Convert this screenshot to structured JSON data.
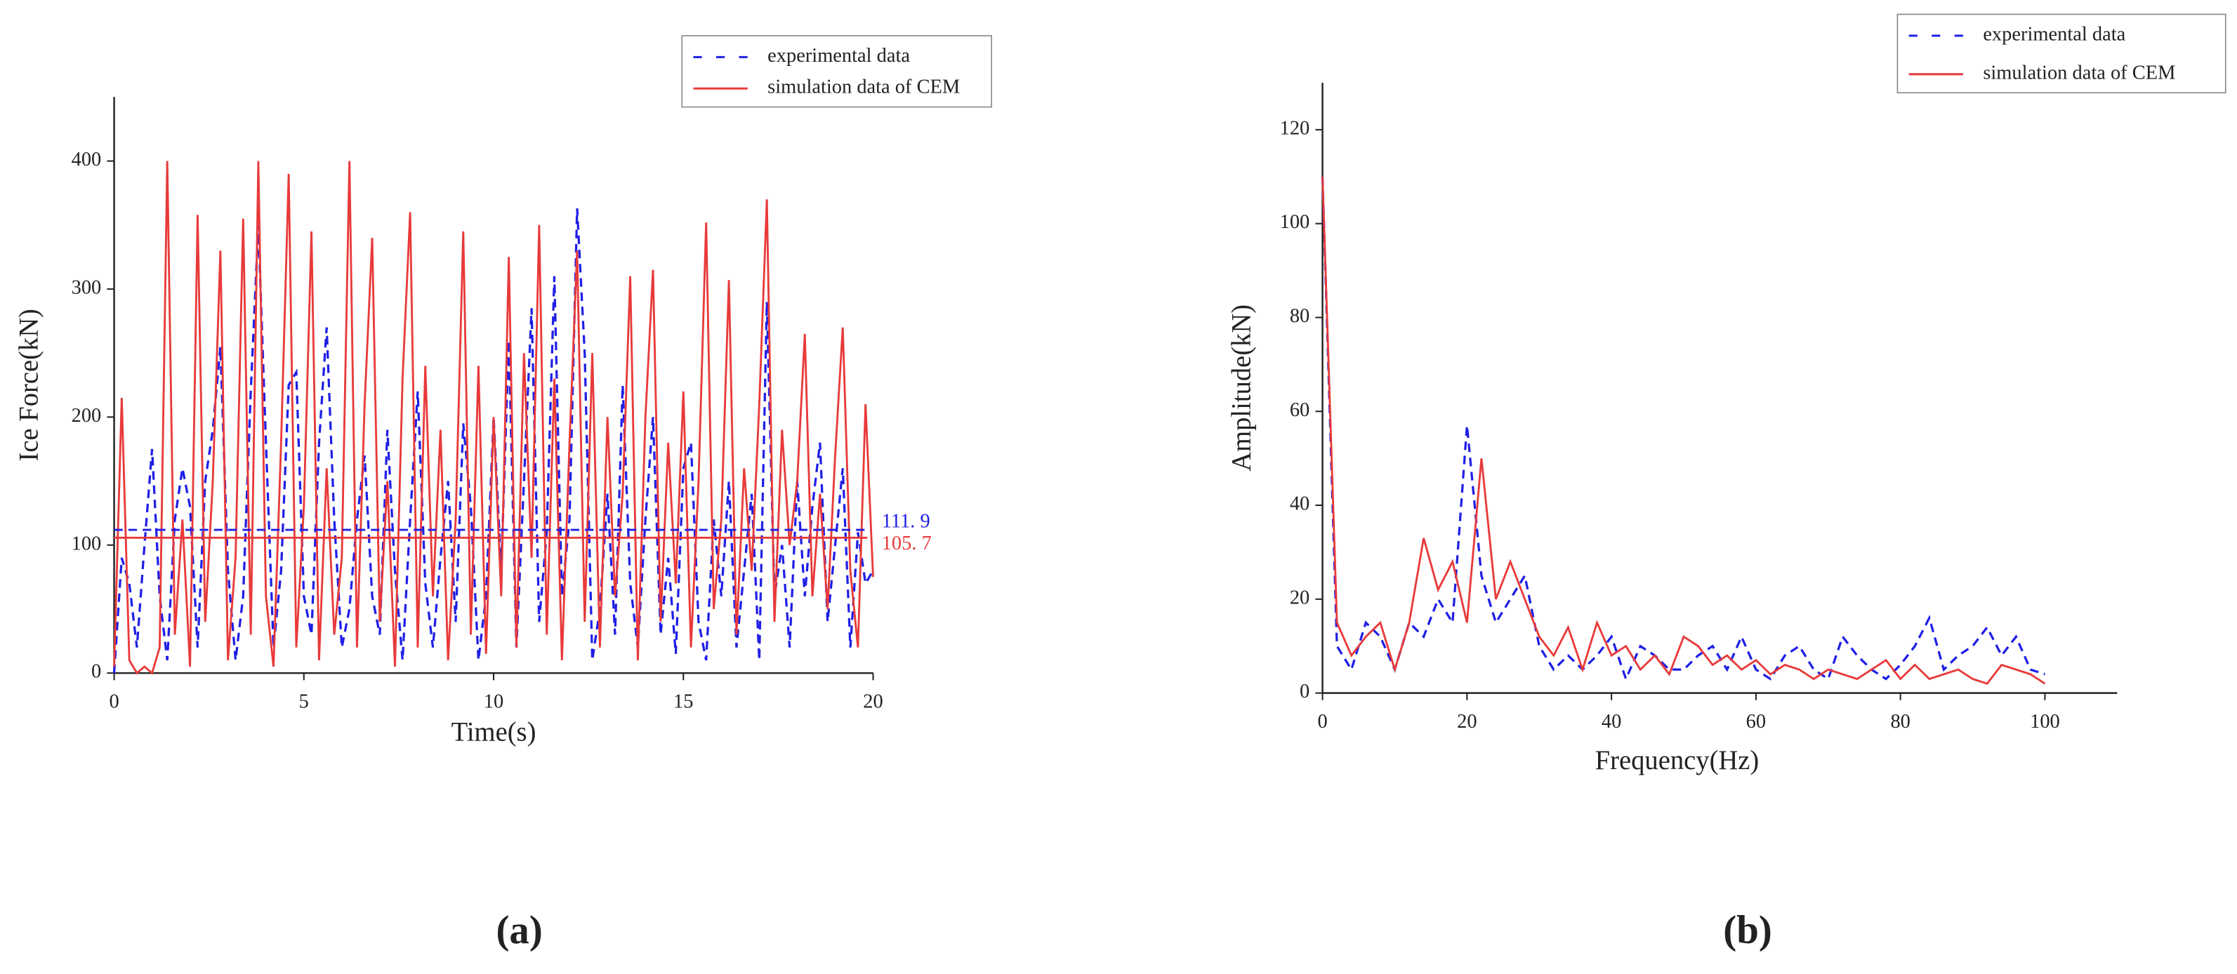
{
  "chart_data": [
    {
      "type": "line",
      "panel_label": "(a)",
      "xlabel": "Time(s)",
      "ylabel": "Ice Force(kN)",
      "xlim": [
        0,
        20
      ],
      "ylim": [
        0,
        450
      ],
      "xticks": [
        0,
        5,
        10,
        15,
        20
      ],
      "yticks": [
        0,
        100,
        200,
        300,
        400
      ],
      "legend": "upper right",
      "x": [
        0,
        0.2,
        0.4,
        0.6,
        0.8,
        1,
        1.2,
        1.4,
        1.6,
        1.8,
        2,
        2.2,
        2.4,
        2.6,
        2.8,
        3,
        3.2,
        3.4,
        3.6,
        3.8,
        4,
        4.2,
        4.4,
        4.6,
        4.8,
        5,
        5.2,
        5.4,
        5.6,
        5.8,
        6,
        6.2,
        6.4,
        6.6,
        6.8,
        7,
        7.2,
        7.4,
        7.6,
        7.8,
        8,
        8.2,
        8.4,
        8.6,
        8.8,
        9,
        9.2,
        9.4,
        9.6,
        9.8,
        10,
        10.2,
        10.4,
        10.6,
        10.8,
        11,
        11.2,
        11.4,
        11.6,
        11.8,
        12,
        12.2,
        12.4,
        12.6,
        12.8,
        13,
        13.2,
        13.4,
        13.6,
        13.8,
        14,
        14.2,
        14.4,
        14.6,
        14.8,
        15,
        15.2,
        15.4,
        15.6,
        15.8,
        16,
        16.2,
        16.4,
        16.6,
        16.8,
        17,
        17.2,
        17.4,
        17.6,
        17.8,
        18,
        18.2,
        18.4,
        18.6,
        18.8,
        19,
        19.2,
        19.4,
        19.6,
        19.8,
        20
      ],
      "series": [
        {
          "name": "experimental data",
          "color": "#1f1fe6",
          "dash": true,
          "values": [
            0,
            90,
            70,
            20,
            100,
            175,
            60,
            10,
            120,
            160,
            130,
            20,
            150,
            190,
            255,
            80,
            10,
            60,
            220,
            350,
            180,
            20,
            80,
            225,
            235,
            60,
            30,
            180,
            270,
            120,
            20,
            50,
            120,
            170,
            60,
            30,
            190,
            80,
            10,
            120,
            220,
            70,
            20,
            90,
            150,
            40,
            195,
            130,
            10,
            60,
            200,
            80,
            260,
            20,
            150,
            285,
            40,
            110,
            310,
            60,
            120,
            363,
            250,
            10,
            50,
            140,
            30,
            225,
            70,
            20,
            120,
            200,
            30,
            90,
            15,
            160,
            180,
            40,
            10,
            120,
            60,
            150,
            20,
            80,
            140,
            10,
            290,
            60,
            100,
            20,
            150,
            60,
            130,
            180,
            40,
            100,
            160,
            20,
            110,
            70,
            80
          ]
        },
        {
          "name": "simulation data of CEM",
          "color": "#e83a3a",
          "dash": false,
          "values": [
            5,
            215,
            10,
            0,
            5,
            0,
            20,
            400,
            30,
            120,
            5,
            358,
            40,
            150,
            330,
            10,
            90,
            355,
            30,
            400,
            60,
            5,
            180,
            390,
            20,
            130,
            345,
            10,
            160,
            30,
            90,
            400,
            20,
            210,
            340,
            40,
            150,
            5,
            230,
            360,
            20,
            240,
            60,
            190,
            10,
            120,
            345,
            30,
            240,
            15,
            200,
            60,
            325,
            20,
            250,
            90,
            350,
            30,
            230,
            10,
            180,
            330,
            40,
            250,
            20,
            200,
            60,
            140,
            310,
            10,
            200,
            315,
            40,
            180,
            70,
            220,
            20,
            150,
            352,
            50,
            120,
            307,
            30,
            160,
            80,
            210,
            370,
            40,
            190,
            100,
            150,
            265,
            60,
            140,
            50,
            170,
            270,
            80,
            20,
            210,
            75
          ]
        }
      ],
      "mean_lines": [
        {
          "value": 111.9,
          "label": "111. 9",
          "color": "#1f1fe6",
          "dash": true
        },
        {
          "value": 105.7,
          "label": "105. 7",
          "color": "#e83a3a",
          "dash": false
        }
      ]
    },
    {
      "type": "line",
      "panel_label": "(b)",
      "xlabel": "Frequency(Hz)",
      "ylabel": "Amplitude(kN)",
      "xlim": [
        0,
        110
      ],
      "ylim": [
        0,
        130
      ],
      "xticks": [
        0,
        20,
        40,
        60,
        80,
        100
      ],
      "yticks": [
        0,
        20,
        40,
        60,
        80,
        100,
        120
      ],
      "legend": "upper right",
      "x": [
        0,
        2,
        4,
        6,
        8,
        10,
        12,
        14,
        16,
        18,
        20,
        22,
        24,
        26,
        28,
        30,
        32,
        34,
        36,
        38,
        40,
        42,
        44,
        46,
        48,
        50,
        52,
        54,
        56,
        58,
        60,
        62,
        64,
        66,
        68,
        70,
        72,
        74,
        76,
        78,
        80,
        82,
        84,
        86,
        88,
        90,
        92,
        94,
        96,
        98,
        100
      ],
      "series": [
        {
          "name": "experimental data",
          "color": "#1f1fe6",
          "dash": true,
          "values": [
            110,
            10,
            5,
            15,
            12,
            5,
            15,
            12,
            20,
            15,
            57,
            25,
            15,
            20,
            25,
            10,
            5,
            8,
            5,
            8,
            12,
            3,
            10,
            8,
            5,
            5,
            8,
            10,
            5,
            12,
            5,
            3,
            8,
            10,
            5,
            3,
            12,
            8,
            5,
            3,
            6,
            10,
            16,
            5,
            8,
            10,
            14,
            8,
            12,
            5,
            4
          ]
        },
        {
          "name": "simulation data of CEM",
          "color": "#e83a3a",
          "dash": false,
          "values": [
            110,
            15,
            8,
            12,
            15,
            5,
            15,
            33,
            22,
            28,
            15,
            50,
            20,
            28,
            20,
            12,
            8,
            14,
            5,
            15,
            8,
            10,
            5,
            8,
            4,
            12,
            10,
            6,
            8,
            5,
            7,
            4,
            6,
            5,
            3,
            5,
            4,
            3,
            5,
            7,
            3,
            6,
            3,
            4,
            5,
            3,
            2,
            6,
            5,
            4,
            2
          ]
        }
      ]
    }
  ]
}
